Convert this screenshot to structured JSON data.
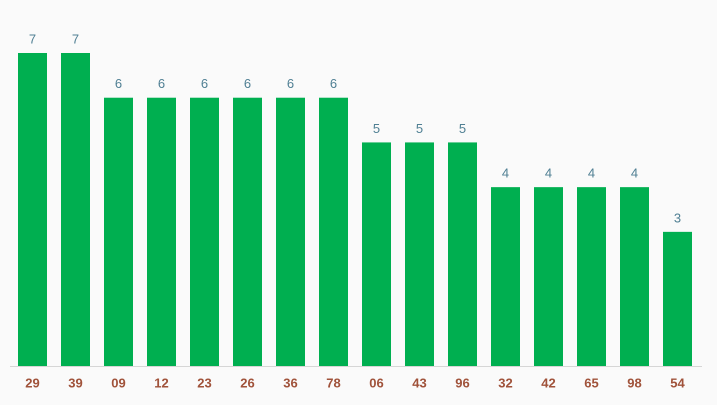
{
  "chart_data": {
    "type": "bar",
    "categories": [
      "29",
      "39",
      "09",
      "12",
      "23",
      "26",
      "36",
      "78",
      "06",
      "43",
      "96",
      "32",
      "42",
      "65",
      "98",
      "54"
    ],
    "values": [
      7,
      7,
      6,
      6,
      6,
      6,
      6,
      6,
      5,
      5,
      5,
      4,
      4,
      4,
      4,
      3
    ],
    "color": "#00af50"
  }
}
